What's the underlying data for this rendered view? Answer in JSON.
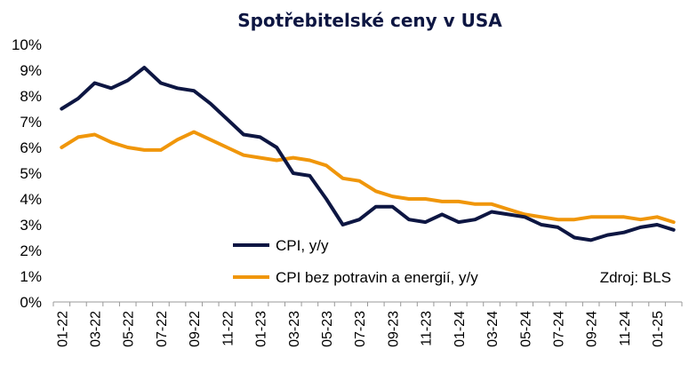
{
  "chart_data": {
    "type": "line",
    "title": "Spotřebitelské ceny v USA",
    "xlabel": "",
    "ylabel": "",
    "ylim": [
      0,
      10
    ],
    "y_ticks": [
      "0%",
      "1%",
      "2%",
      "3%",
      "4%",
      "5%",
      "6%",
      "7%",
      "8%",
      "9%",
      "10%"
    ],
    "x": [
      "01-22",
      "02-22",
      "03-22",
      "04-22",
      "05-22",
      "06-22",
      "07-22",
      "08-22",
      "09-22",
      "10-22",
      "11-22",
      "12-22",
      "01-23",
      "02-23",
      "03-23",
      "04-23",
      "05-23",
      "06-23",
      "07-23",
      "08-23",
      "09-23",
      "10-23",
      "11-23",
      "12-23",
      "01-24",
      "02-24",
      "03-24",
      "04-24",
      "05-24",
      "06-24",
      "07-24",
      "08-24",
      "09-24",
      "10-24",
      "11-24",
      "12-24",
      "01-25",
      "02-25"
    ],
    "x_tick_labels": [
      "01-22",
      "03-22",
      "05-22",
      "07-22",
      "09-22",
      "11-22",
      "01-23",
      "03-23",
      "05-23",
      "07-23",
      "09-23",
      "11-23",
      "01-24",
      "03-24",
      "05-24",
      "07-24",
      "09-24",
      "11-24",
      "01-25"
    ],
    "series": [
      {
        "name": "CPI, y/y",
        "color": "#0d1642",
        "values": [
          7.5,
          7.9,
          8.5,
          8.3,
          8.6,
          9.1,
          8.5,
          8.3,
          8.2,
          7.7,
          7.1,
          6.5,
          6.4,
          6.0,
          5.0,
          4.9,
          4.0,
          3.0,
          3.2,
          3.7,
          3.7,
          3.2,
          3.1,
          3.4,
          3.1,
          3.2,
          3.5,
          3.4,
          3.3,
          3.0,
          2.9,
          2.5,
          2.4,
          2.6,
          2.7,
          2.9,
          3.0,
          2.8
        ]
      },
      {
        "name": "CPI bez potravin a energií, y/y",
        "color": "#f0960a",
        "values": [
          6.0,
          6.4,
          6.5,
          6.2,
          6.0,
          5.9,
          5.9,
          6.3,
          6.6,
          6.3,
          6.0,
          5.7,
          5.6,
          5.5,
          5.6,
          5.5,
          5.3,
          4.8,
          4.7,
          4.3,
          4.1,
          4.0,
          4.0,
          3.9,
          3.9,
          3.8,
          3.8,
          3.6,
          3.4,
          3.3,
          3.2,
          3.2,
          3.3,
          3.3,
          3.3,
          3.2,
          3.3,
          3.1
        ]
      }
    ],
    "legend_position": "bottom-left",
    "grid": false,
    "source": "Zdroj: BLS"
  }
}
